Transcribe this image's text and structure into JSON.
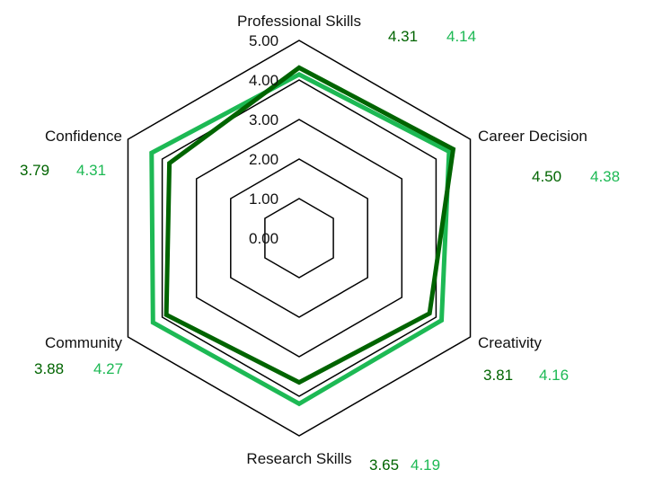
{
  "chart_data": {
    "type": "radar",
    "title": "",
    "range": [
      0,
      5
    ],
    "ticks": [
      "0.00",
      "1.00",
      "2.00",
      "3.00",
      "4.00",
      "5.00"
    ],
    "categories": [
      "Professional Skills",
      "Career Decision",
      "Creativity",
      "Research Skills",
      "Community",
      "Confidence"
    ],
    "series": [
      {
        "color": "#006400",
        "values": [
          4.31,
          4.5,
          3.81,
          3.65,
          3.88,
          3.79
        ]
      },
      {
        "color": "#1db954",
        "values": [
          4.14,
          4.38,
          4.16,
          4.19,
          4.27,
          4.31
        ]
      }
    ],
    "value_labels": [
      [
        "4.31",
        "4.50",
        "3.81",
        "3.65",
        "3.88",
        "3.79"
      ],
      [
        "4.14",
        "4.38",
        "4.16",
        "4.19",
        "4.27",
        "4.31"
      ]
    ],
    "grid": true,
    "legend": "none"
  }
}
